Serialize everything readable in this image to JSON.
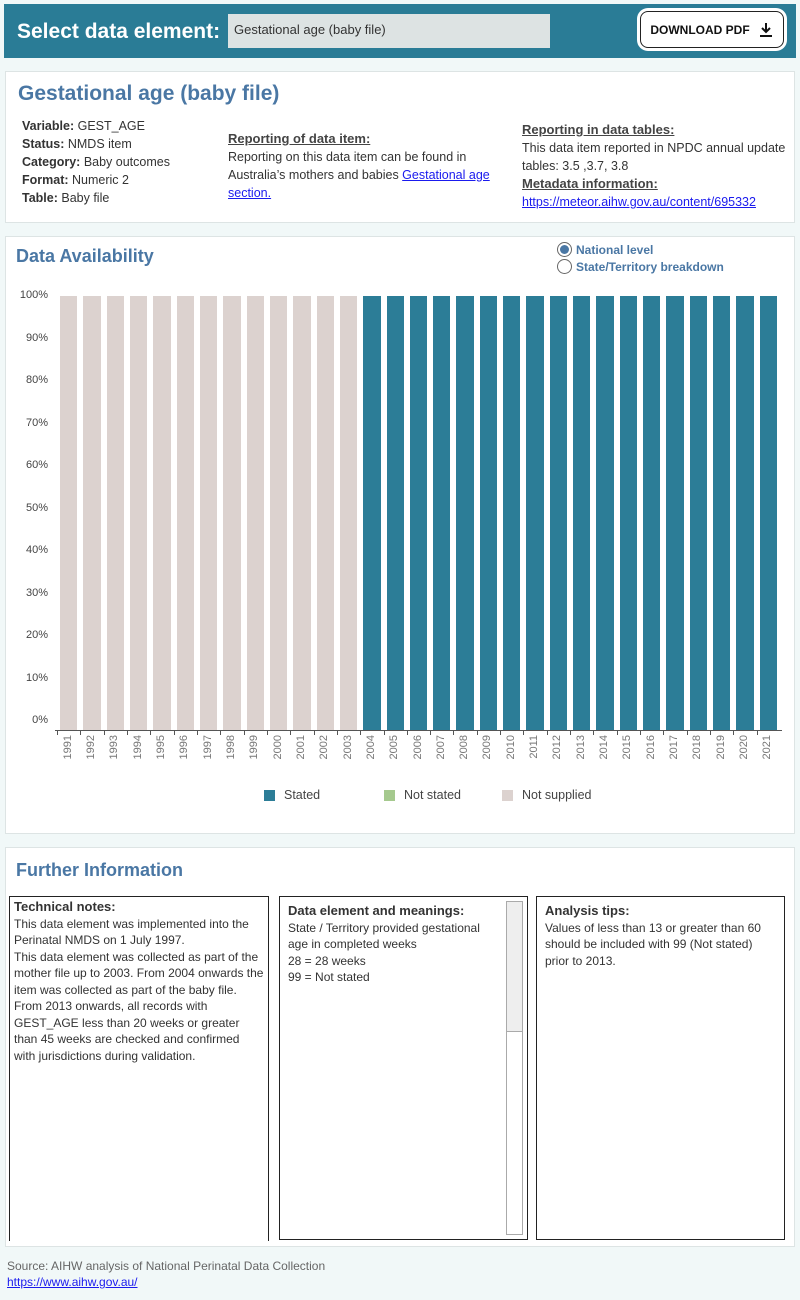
{
  "header": {
    "label": "Select data element:",
    "selected": "Gestational age (baby file)",
    "download_label": "DOWNLOAD PDF",
    "download_icon": "download-icon"
  },
  "summary": {
    "title": "Gestational age (baby file)",
    "fields": [
      {
        "k": "Variable:",
        "v": "GEST_AGE"
      },
      {
        "k": "Status:",
        "v": "NMDS item"
      },
      {
        "k": "Category:",
        "v": "Baby outcomes"
      },
      {
        "k": "Format:",
        "v": "Numeric 2"
      },
      {
        "k": "Table:",
        "v": "Baby file"
      }
    ],
    "reporting_heading": "Reporting of data item:",
    "reporting_text": "Reporting on this data item can be found in Australia’s mothers and babies ",
    "reporting_link": "Gestational age section.",
    "tables_heading": "Reporting in data tables:",
    "tables_text": "This data item reported in NPDC annual update tables: 3.5 ,3.7, 3.8",
    "metadata_heading": "Metadata information:",
    "metadata_link": "https://meteor.aihw.gov.au/content/695332"
  },
  "availability": {
    "title": "Data Availability",
    "radio": [
      {
        "label": "National level",
        "selected": true
      },
      {
        "label": "State/Territory breakdown",
        "selected": false
      }
    ]
  },
  "chart_data": {
    "type": "bar",
    "stacked": true,
    "categories": [
      "1991",
      "1992",
      "1993",
      "1994",
      "1995",
      "1996",
      "1997",
      "1998",
      "1999",
      "2000",
      "2001",
      "2002",
      "2003",
      "2004",
      "2005",
      "2006",
      "2007",
      "2008",
      "2009",
      "2010",
      "2011",
      "2012",
      "2013",
      "2014",
      "2015",
      "2016",
      "2017",
      "2018",
      "2019",
      "2020",
      "2021"
    ],
    "series": [
      {
        "name": "Stated",
        "color": "#2c7d97",
        "values": [
          0,
          0,
          0,
          0,
          0,
          0,
          0,
          0,
          0,
          0,
          0,
          0,
          0,
          100,
          100,
          100,
          100,
          100,
          100,
          100,
          100,
          100,
          100,
          100,
          100,
          100,
          100,
          100,
          100,
          100,
          100
        ]
      },
      {
        "name": "Not stated",
        "color": "#a5c98e",
        "values": [
          0,
          0,
          0,
          0,
          0,
          0,
          0,
          0,
          0,
          0,
          0,
          0,
          0,
          0,
          0,
          0,
          0,
          0,
          0,
          0,
          0,
          0,
          0,
          0,
          0,
          0,
          0,
          0,
          0,
          0,
          0
        ]
      },
      {
        "name": "Not supplied",
        "color": "#dcd2cf",
        "values": [
          100,
          100,
          100,
          100,
          100,
          100,
          100,
          100,
          100,
          100,
          100,
          100,
          100,
          0,
          0,
          0,
          0,
          0,
          0,
          0,
          0,
          0,
          0,
          0,
          0,
          0,
          0,
          0,
          0,
          0,
          0
        ]
      }
    ],
    "yticks": [
      "0%",
      "10%",
      "20%",
      "30%",
      "40%",
      "50%",
      "60%",
      "70%",
      "80%",
      "90%",
      "100%"
    ],
    "ylim": [
      0,
      100
    ],
    "legend": "bottom"
  },
  "further": {
    "title": "Further Information",
    "technical_heading": "Technical notes:",
    "technical_lines": [
      "This data element was implemented into the Perinatal NMDS on 1 July 1997.",
      "This data element was collected as part of the mother file up to 2003. From 2004 onwards the item was collected as part of the baby file.",
      "From 2013 onwards, all records with GEST_AGE less than 20 weeks or greater than 45 weeks are checked and confirmed with jurisdictions during validation."
    ],
    "meanings_heading": "Data element and meanings:",
    "meanings_lines": [
      "State / Territory provided gestational age in completed weeks",
      "28 = 28 weeks",
      "99 = Not stated"
    ],
    "tips_heading": "Analysis tips:",
    "tips_text": "Values of less than 13 or greater than 60 should be included with 99 (Not stated) prior to 2013."
  },
  "footer": {
    "source": "Source: AIHW analysis of National Perinatal Data Collection",
    "link": "https://www.aihw.gov.au/"
  }
}
